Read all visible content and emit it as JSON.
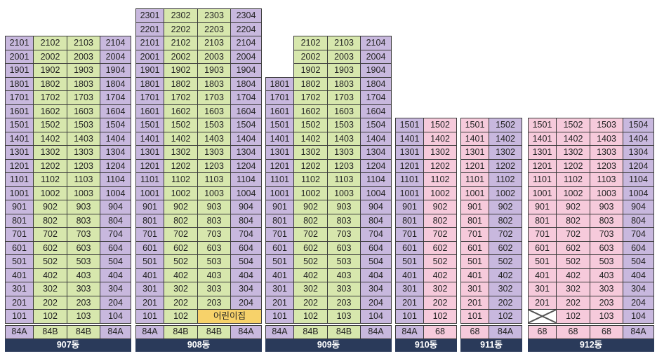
{
  "colors": {
    "purple": "#c8b8de",
    "green": "#d7e7ad",
    "pink": "#f6cadb",
    "yellow": "#f7d26a",
    "label_bg": "#2a3a5a"
  },
  "buildings": [
    {
      "id": "b907",
      "label": "907동",
      "max_floor": 21,
      "lines": 4,
      "line_colors": [
        "purple",
        "green",
        "green",
        "purple"
      ],
      "types": [
        "84A",
        "84B",
        "84B",
        "84A"
      ],
      "special": [],
      "voids": []
    },
    {
      "id": "b908",
      "label": "908동",
      "max_floor": 23,
      "lines": 4,
      "line_colors": [
        "purple",
        "green",
        "green",
        "purple"
      ],
      "types": [
        "84A",
        "84B",
        "84B",
        "84A"
      ],
      "special": [
        {
          "floor": 1,
          "line": 3,
          "text": "어린이집",
          "color": "yellow"
        }
      ],
      "voids": [
        {
          "floor": 1,
          "line": 4
        }
      ]
    },
    {
      "id": "b909",
      "label": "909동",
      "max_floor": 21,
      "lines": 4,
      "line_colors": [
        "purple",
        "green",
        "green",
        "purple"
      ],
      "types": [
        "84A",
        "84B",
        "84B",
        "84A"
      ],
      "top_floor_by_line": [
        18,
        21,
        21,
        21
      ],
      "special": [],
      "voids": []
    },
    {
      "id": "b910",
      "label": "910동",
      "max_floor": 15,
      "lines": 2,
      "line_colors": [
        "purple",
        "pink"
      ],
      "types": [
        "84A",
        "68"
      ],
      "special": [],
      "voids": []
    },
    {
      "id": "b911",
      "label": "911동",
      "max_floor": 15,
      "lines": 2,
      "line_colors": [
        "pink",
        "purple"
      ],
      "types": [
        "68",
        "84A"
      ],
      "special": [],
      "voids": []
    },
    {
      "id": "b912",
      "label": "912동",
      "max_floor": 15,
      "lines": 4,
      "line_colors": [
        "pink",
        "pink",
        "pink",
        "purple"
      ],
      "types": [
        "68",
        "68",
        "68",
        "84A"
      ],
      "special": [],
      "voids": [
        {
          "floor": 1,
          "line": 1
        }
      ]
    }
  ]
}
